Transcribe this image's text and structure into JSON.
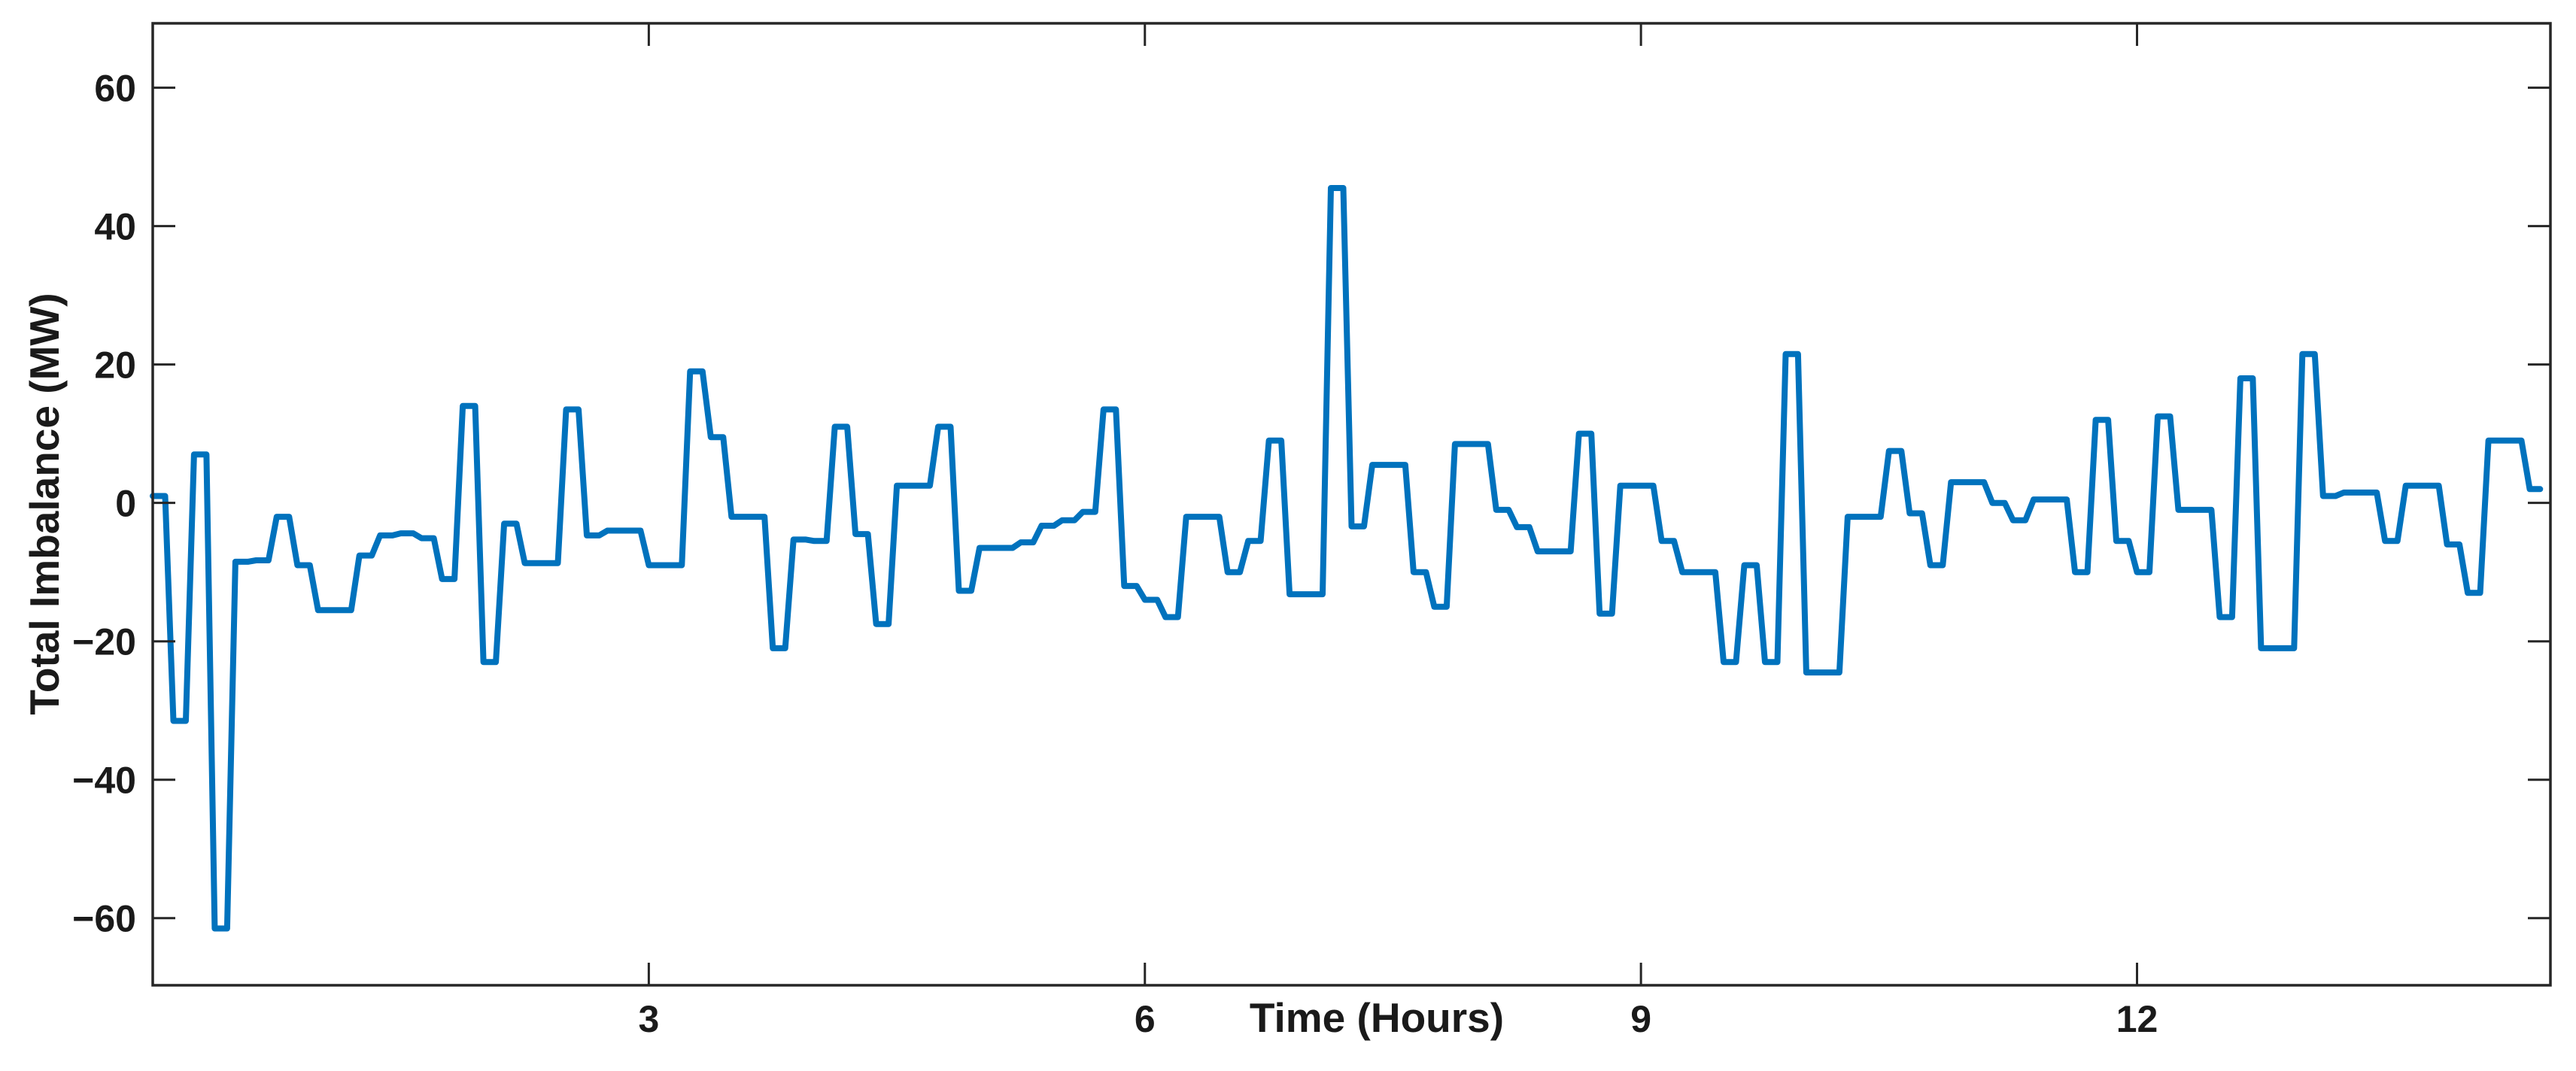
{
  "chart_data": {
    "type": "line",
    "render_style": "stairs",
    "title": "",
    "xlabel": "Time (Hours)",
    "ylabel": "Total Imbalance (MW)",
    "x_start": 0,
    "x_step_hours": 0.125,
    "values": [
      1,
      -31.5,
      7,
      -61.5,
      -8.5,
      -8.3,
      -2,
      -9,
      -15.5,
      -15.5,
      -7.6,
      -4.7,
      -4.4,
      -5.1,
      -11,
      14,
      -23,
      -3,
      -8.7,
      -8.7,
      13.5,
      -4.7,
      -4,
      -4,
      -9,
      -9,
      19,
      9.5,
      -2,
      -2,
      -21,
      -5.3,
      -5.5,
      11,
      -4.5,
      -17.5,
      2.5,
      2.5,
      11,
      -12.7,
      -6.5,
      -6.5,
      -5.7,
      -3.3,
      -2.5,
      -1.3,
      13.5,
      -12,
      -14,
      -16.5,
      -2,
      -2,
      -10,
      -5.5,
      9,
      -13.2,
      -13.2,
      45.5,
      -3.4,
      5.5,
      5.5,
      -10,
      -15,
      8.5,
      8.5,
      -1,
      -3.5,
      -7,
      -7,
      10,
      -16,
      2.5,
      2.5,
      -5.5,
      -10,
      -10,
      -23,
      -9,
      -23,
      21.5,
      -24.5,
      -24.5,
      -2,
      -2,
      7.5,
      -1.5,
      -9,
      3,
      3,
      0,
      -2.5,
      0.5,
      0.5,
      -10,
      12,
      -5.5,
      -10,
      12.5,
      -1,
      -1,
      -16.5,
      18,
      -21,
      -21,
      21.5,
      1,
      1.5,
      1.5,
      -5.5,
      2.5,
      2.5,
      -6,
      -13,
      9,
      9,
      2
    ],
    "xticks": [
      3,
      6,
      9,
      12
    ],
    "yticks": [
      60,
      40,
      20,
      0,
      -20,
      -40,
      -60
    ],
    "xlim": [
      0,
      14.5
    ],
    "ylim": [
      -69.7,
      69.3
    ],
    "grid": false,
    "legend": null,
    "line_color": "#0072BD",
    "axis_color": "#262626",
    "background_color": "#ffffff"
  }
}
